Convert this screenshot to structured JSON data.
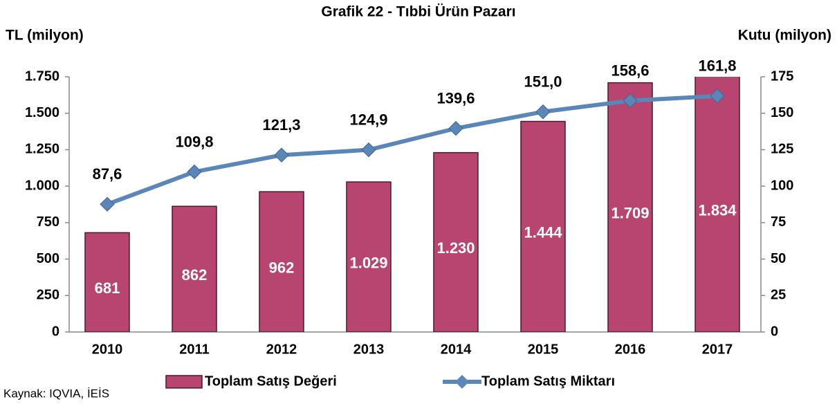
{
  "chart_data": {
    "type": "bar-line",
    "title": "Grafik 22 - Tıbbi Ürün Pazarı",
    "y_label": "TL (milyon)",
    "y2_label": "Kutu (milyon)",
    "source": "Kaynak: IQVIA, İEİS",
    "categories": [
      "2010",
      "2011",
      "2012",
      "2013",
      "2014",
      "2015",
      "2016",
      "2017"
    ],
    "series": [
      {
        "name": "Toplam Satış Değeri",
        "type": "bar",
        "color": "#b8456f",
        "values": [
          681,
          862,
          962,
          1029,
          1230,
          1444,
          1709,
          1834
        ],
        "value_labels": [
          "681",
          "862",
          "962",
          "1.029",
          "1.230",
          "1.444",
          "1.709",
          "1.834"
        ]
      },
      {
        "name": "Toplam Satış Miktarı",
        "type": "line",
        "axis": "y2",
        "color": "#5b86b8",
        "values": [
          87.6,
          109.8,
          121.3,
          124.9,
          139.6,
          151.0,
          158.6,
          161.8
        ],
        "value_labels": [
          "87,6",
          "109,8",
          "121,3",
          "124,9",
          "139,6",
          "151,0",
          "158,6",
          "161,8"
        ]
      }
    ],
    "ylim": [
      0,
      1750
    ],
    "yticks": [
      0,
      250,
      500,
      750,
      {
        "value": 1000,
        "label": "1.000"
      },
      {
        "value": 1250,
        "label": "1.250"
      },
      {
        "value": 1500,
        "label": "1.500"
      },
      {
        "value": 1750,
        "label": "1.750"
      }
    ],
    "y2lim": [
      0,
      175
    ],
    "y2ticks": [
      0,
      25,
      50,
      75,
      100,
      125,
      150,
      175
    ]
  }
}
